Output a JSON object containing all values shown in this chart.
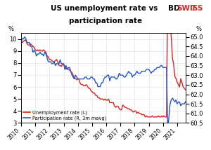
{
  "title_main": "US unemployment rate vs ",
  "title_line2": "participation rate",
  "logo_bd": "BD",
  "logo_swiss": "SWISS",
  "ylabel_left": "%",
  "ylabel_right": "%",
  "ylim_left": [
    3.0,
    10.5
  ],
  "ylim_right": [
    60.5,
    65.2
  ],
  "yticks_left": [
    3,
    4,
    5,
    6,
    7,
    8,
    9,
    10
  ],
  "yticks_right": [
    60.5,
    61.0,
    61.5,
    62.0,
    62.5,
    63.0,
    63.5,
    64.0,
    64.5,
    65.0
  ],
  "xtick_labels": [
    "2010",
    "2011",
    "2012",
    "2013",
    "2014",
    "2015",
    "2016",
    "2017",
    "2018",
    "2019",
    "2020",
    "2021"
  ],
  "unemp_color": "#dd2222",
  "part_color": "#2255cc",
  "logo_bd_color": "#000000",
  "logo_swiss_color": "#dd2222",
  "background_color": "#ffffff",
  "grid_color": "#dddddd",
  "legend_unemp": "Unemployment rate (L)",
  "legend_part": "Participation rate (R, 3m mavg)",
  "unemp_data": [
    9.8,
    9.7,
    9.8,
    9.9,
    9.9,
    9.6,
    9.5,
    9.5,
    9.6,
    9.5,
    9.4,
    9.3,
    9.1,
    9.0,
    9.1,
    9.0,
    9.1,
    9.0,
    9.0,
    9.1,
    9.0,
    8.9,
    8.6,
    8.5,
    8.3,
    8.3,
    8.2,
    8.1,
    8.1,
    8.2,
    8.3,
    8.1,
    7.8,
    7.8,
    7.7,
    7.9,
    7.9,
    7.7,
    7.5,
    7.5,
    7.5,
    7.4,
    7.3,
    7.2,
    7.0,
    6.7,
    6.7,
    6.6,
    6.7,
    6.6,
    6.3,
    6.2,
    6.2,
    6.1,
    6.1,
    6.2,
    6.1,
    5.9,
    5.9,
    5.7,
    5.6,
    5.5,
    5.5,
    5.3,
    5.3,
    5.1,
    5.1,
    5.0,
    5.0,
    5.0,
    4.9,
    5.0,
    4.9,
    4.9,
    5.0,
    4.7,
    4.7,
    4.7,
    4.7,
    4.4,
    4.3,
    4.4,
    4.4,
    4.2,
    4.1,
    4.1,
    4.5,
    4.4,
    4.3,
    4.3,
    4.2,
    4.2,
    4.1,
    4.1,
    4.0,
    3.9,
    4.0,
    4.0,
    3.8,
    3.9,
    3.8,
    3.8,
    3.7,
    3.7,
    3.7,
    3.5,
    3.6,
    3.5,
    3.5,
    3.5,
    3.5,
    3.6,
    3.5,
    3.5,
    3.5,
    3.5,
    3.6,
    3.5,
    3.5,
    3.6,
    3.5,
    3.6,
    3.5,
    3.5,
    14.7,
    13.3,
    11.1,
    10.2,
    8.4,
    7.9,
    6.9,
    6.7,
    6.4,
    6.2,
    6.0,
    6.7,
    6.4,
    6.0,
    5.9,
    5.8,
    5.6
  ],
  "part_data": [
    64.7,
    64.9,
    64.9,
    65.0,
    64.9,
    64.7,
    64.7,
    64.7,
    64.5,
    64.5,
    64.2,
    64.3,
    64.2,
    64.0,
    64.1,
    64.1,
    64.2,
    64.1,
    64.1,
    64.0,
    64.2,
    64.1,
    63.9,
    63.7,
    63.7,
    63.7,
    63.6,
    63.6,
    63.7,
    63.5,
    63.6,
    63.6,
    63.6,
    63.8,
    63.6,
    63.6,
    63.6,
    63.3,
    63.5,
    63.3,
    63.4,
    63.4,
    63.2,
    63.0,
    62.9,
    62.8,
    63.0,
    62.9,
    62.8,
    62.8,
    62.8,
    62.8,
    62.8,
    62.8,
    62.9,
    62.9,
    62.8,
    62.8,
    62.8,
    62.9,
    62.9,
    62.8,
    62.8,
    62.6,
    62.6,
    62.4,
    62.4,
    62.4,
    62.6,
    62.6,
    62.8,
    62.9,
    62.9,
    63.0,
    63.0,
    62.7,
    62.9,
    62.9,
    62.9,
    62.9,
    62.8,
    62.8,
    62.9,
    63.1,
    63.0,
    63.0,
    63.0,
    62.9,
    62.9,
    63.0,
    63.1,
    63.2,
    63.1,
    63.1,
    62.9,
    63.0,
    63.0,
    63.1,
    63.2,
    63.1,
    63.1,
    63.1,
    63.2,
    63.2,
    63.2,
    63.2,
    63.3,
    63.3,
    63.3,
    63.2,
    63.1,
    63.2,
    63.2,
    63.3,
    63.3,
    63.4,
    63.4,
    63.4,
    63.5,
    63.5,
    63.4,
    63.4,
    63.4,
    63.4,
    60.2,
    60.8,
    61.5,
    61.7,
    61.8,
    61.7,
    61.6,
    61.7,
    61.5,
    61.6,
    61.6,
    61.4,
    61.5,
    61.5,
    61.5,
    61.6,
    61.7
  ]
}
